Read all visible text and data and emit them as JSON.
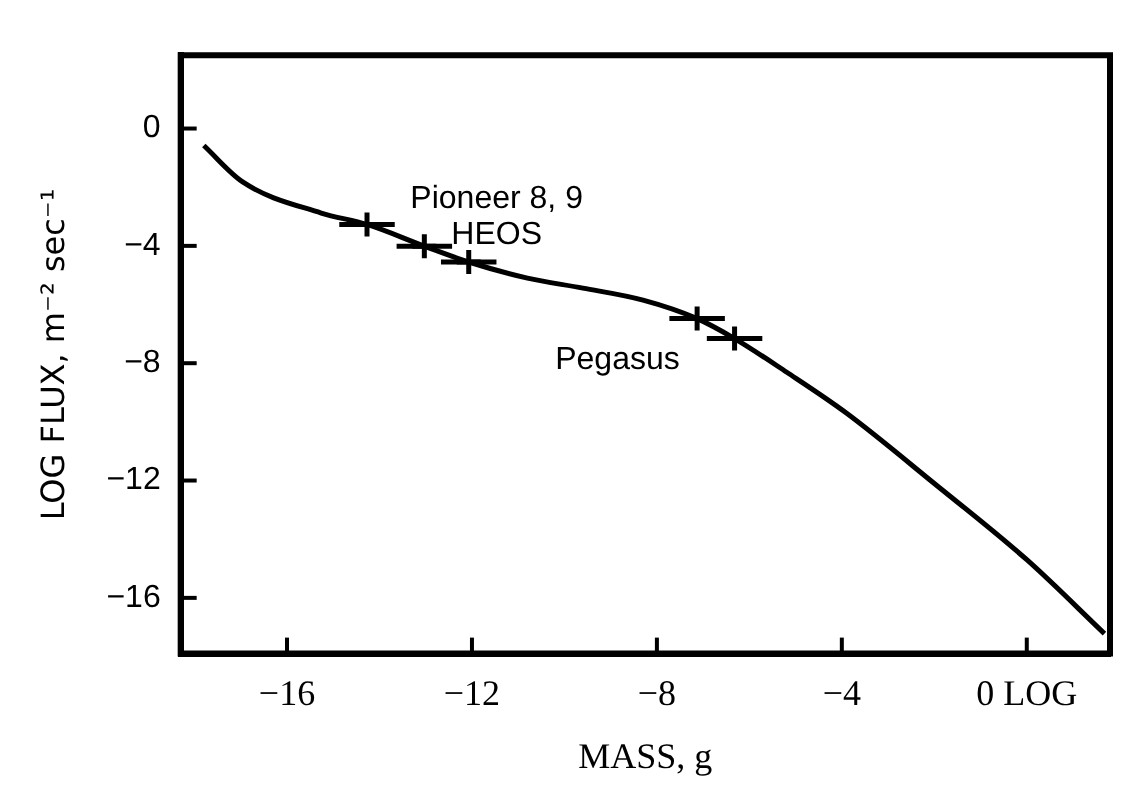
{
  "chart_data": {
    "type": "line",
    "xlabel": "MASS, g",
    "ylabel": "LOG FLUX, m⁻² sec⁻¹",
    "xlim": [
      -18.3,
      1.8
    ],
    "xticks": [
      -16,
      -12,
      -8,
      -4,
      {
        "value": 0,
        "label": "0 LOG"
      }
    ],
    "ylim": [
      -17.9,
      2.5
    ],
    "yticks": [
      0,
      -4,
      -8,
      -12,
      -16
    ],
    "grid": false,
    "legend": false,
    "series": [
      {
        "color": "#000000",
        "marker": "none",
        "x": [
          -17.8,
          -16.96,
          -15.26,
          -14.27,
          -13.03,
          -12.07,
          -10.8,
          -9.6,
          -8.3,
          -7.13,
          -6.32,
          -5.2,
          -3.91,
          -2,
          0,
          1.68
        ],
        "values": [
          -0.58,
          -1.82,
          -2.88,
          -3.27,
          -4.01,
          -4.55,
          -5.1,
          -5.44,
          -5.85,
          -6.48,
          -7.16,
          -8.3,
          -9.69,
          -12.1,
          -14.7,
          -17.22
        ]
      },
      {
        "type": "scatter",
        "color": "#000000",
        "marker": "cross",
        "x": [
          -14.27,
          -13.03,
          -12.07,
          -7.13,
          -6.32
        ],
        "values": [
          -3.27,
          -4.01,
          -4.55,
          -6.48,
          -7.16
        ],
        "xerrors": [
          0.6,
          0.6,
          0.6,
          0.6,
          0.6
        ]
      }
    ],
    "annotations": [
      "Pioneer 8, 9",
      "HEOS",
      "Pegasus"
    ]
  }
}
